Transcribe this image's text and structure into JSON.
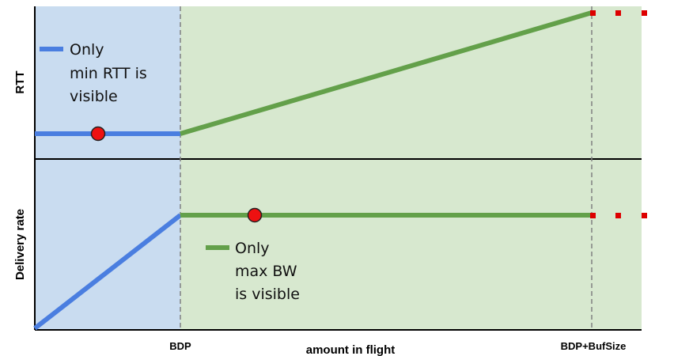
{
  "colors": {
    "region_blue": "#c9dcf0",
    "region_green": "#d7e8cf",
    "line_blue": "#4a7ee0",
    "line_green": "#63a04a",
    "marker_red": "#ee1111",
    "dotted_red": "#dd0000",
    "dashed_gray": "#808080"
  },
  "labels": {
    "rtt_axis": "RTT",
    "rate_axis": "Delivery rate",
    "x_axis": "amount in flight",
    "tick_bdp": "BDP",
    "tick_bdp_buf": "BDP+BufSize"
  },
  "legends": {
    "rtt_note": [
      "Only",
      "min RTT is",
      "visible"
    ],
    "rate_note": [
      "Only",
      "max BW",
      "is visible"
    ]
  }
}
